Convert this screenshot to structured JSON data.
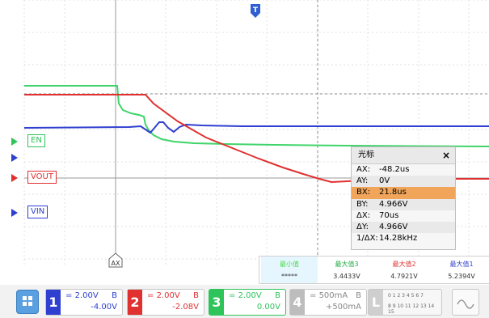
{
  "trigger_marker": "T",
  "cursor_tag": "AX",
  "channel_labels": {
    "en": "EN",
    "vout": "VOUT",
    "vin": "VIN"
  },
  "cursor_panel": {
    "title": "光标",
    "close": "×",
    "rows": [
      {
        "k": "AX:",
        "v": "-48.2us"
      },
      {
        "k": "AY:",
        "v": "0V"
      },
      {
        "k": "BX:",
        "v": "21.8us"
      },
      {
        "k": "BY:",
        "v": "4.966V"
      },
      {
        "k": "ΔX:",
        "v": "70us"
      },
      {
        "k": "ΔY:",
        "v": "4.966V"
      },
      {
        "k": "1/ΔX:",
        "v": "14.28kHz"
      }
    ]
  },
  "measurements": [
    {
      "title": "最小值",
      "value": "*****",
      "color": "#44dd44"
    },
    {
      "title": "最大值3",
      "value": "3.4433V",
      "color": "#22aa44"
    },
    {
      "title": "最大值2",
      "value": "4.7921V",
      "color": "#dd3333"
    },
    {
      "title": "最大值1",
      "value": "5.2394V",
      "color": "#3344cc"
    }
  ],
  "channels": [
    {
      "num": "1",
      "scale": "2.00V",
      "bw": "B",
      "offset": "-4.00V",
      "color": "#2f3fd0"
    },
    {
      "num": "2",
      "scale": "2.00V",
      "bw": "B",
      "offset": "-2.08V",
      "color": "#e03030"
    },
    {
      "num": "3",
      "scale": "2.00V",
      "bw": "B",
      "offset": "0.00V",
      "color": "#2ec45a"
    },
    {
      "num": "4",
      "scale": "500mA",
      "bw": "B",
      "offset": "+500mA",
      "color": "#bdbdbd"
    }
  ],
  "logic_bits": {
    "top": "0 1 2 3  4 5 6 7",
    "bottom": "8 9 10 11 12 13 14 15"
  },
  "logic_label": "L",
  "colors": {
    "ch1": "#2f3fd0",
    "ch2": "#e03030",
    "ch3": "#2ec45a",
    "bg": "#ffffff"
  }
}
